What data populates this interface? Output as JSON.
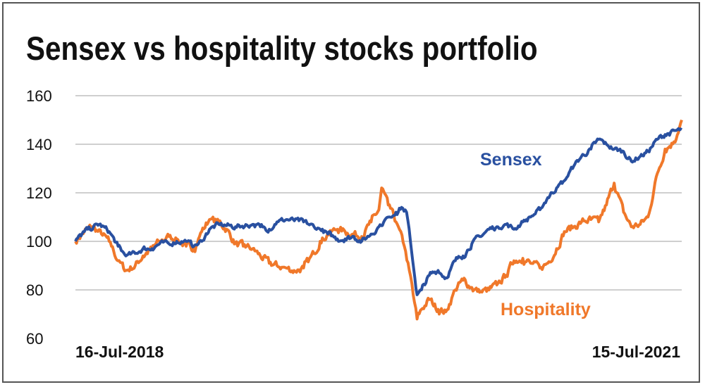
{
  "title": "Sensex vs hospitality stocks portfolio",
  "colors": {
    "sensex": "#2950a0",
    "hospitality": "#f0782a",
    "grid": "#bfbfbf"
  },
  "chart_data": {
    "type": "line",
    "title": "Sensex vs hospitality stocks portfolio",
    "xlabel": "",
    "ylabel": "",
    "ylim": [
      60,
      160
    ],
    "yticks": [
      60,
      80,
      100,
      120,
      140,
      160
    ],
    "x_range_labels": [
      "16-Jul-2018",
      "15-Jul-2021"
    ],
    "grid": true,
    "legend": "inline labels",
    "series": [
      {
        "name": "Sensex",
        "color": "#2950a0",
        "points": [
          [
            "2018-07-16",
            100
          ],
          [
            "2018-08-01",
            104
          ],
          [
            "2018-08-28",
            107
          ],
          [
            "2018-09-15",
            104
          ],
          [
            "2018-10-01",
            98
          ],
          [
            "2018-10-15",
            94
          ],
          [
            "2018-11-01",
            95
          ],
          [
            "2018-11-15",
            97
          ],
          [
            "2018-12-01",
            97
          ],
          [
            "2018-12-15",
            99
          ],
          [
            "2019-01-01",
            99
          ],
          [
            "2019-01-15",
            100
          ],
          [
            "2019-02-01",
            100
          ],
          [
            "2019-02-15",
            98
          ],
          [
            "2019-03-01",
            100
          ],
          [
            "2019-03-15",
            105
          ],
          [
            "2019-04-01",
            107
          ],
          [
            "2019-05-01",
            106
          ],
          [
            "2019-06-01",
            107
          ],
          [
            "2019-06-15",
            106
          ],
          [
            "2019-07-01",
            105
          ],
          [
            "2019-07-15",
            108
          ],
          [
            "2019-08-01",
            109
          ],
          [
            "2019-09-01",
            108
          ],
          [
            "2019-09-20",
            106
          ],
          [
            "2019-10-01",
            105
          ],
          [
            "2019-10-15",
            103
          ],
          [
            "2019-11-01",
            101
          ],
          [
            "2019-11-15",
            101
          ],
          [
            "2019-12-01",
            102
          ],
          [
            "2019-12-15",
            100
          ],
          [
            "2020-01-01",
            103
          ],
          [
            "2020-01-15",
            106
          ],
          [
            "2020-02-01",
            110
          ],
          [
            "2020-02-15",
            112
          ],
          [
            "2020-02-25",
            114
          ],
          [
            "2020-03-05",
            112
          ],
          [
            "2020-03-12",
            100
          ],
          [
            "2020-03-20",
            85
          ],
          [
            "2020-03-24",
            78
          ],
          [
            "2020-04-01",
            80
          ],
          [
            "2020-04-15",
            86
          ],
          [
            "2020-05-01",
            88
          ],
          [
            "2020-05-15",
            85
          ],
          [
            "2020-06-01",
            92
          ],
          [
            "2020-06-15",
            94
          ],
          [
            "2020-07-01",
            99
          ],
          [
            "2020-07-15",
            102
          ],
          [
            "2020-08-01",
            105
          ],
          [
            "2020-08-15",
            106
          ],
          [
            "2020-09-01",
            107
          ],
          [
            "2020-09-15",
            105
          ],
          [
            "2020-10-01",
            108
          ],
          [
            "2020-10-15",
            110
          ],
          [
            "2020-11-01",
            113
          ],
          [
            "2020-11-15",
            118
          ],
          [
            "2020-12-01",
            122
          ],
          [
            "2020-12-15",
            125
          ],
          [
            "2021-01-01",
            131
          ],
          [
            "2021-01-15",
            135
          ],
          [
            "2021-02-01",
            138
          ],
          [
            "2021-02-15",
            142
          ],
          [
            "2021-03-01",
            140
          ],
          [
            "2021-03-15",
            138
          ],
          [
            "2021-04-01",
            137
          ],
          [
            "2021-04-15",
            133
          ],
          [
            "2021-05-01",
            135
          ],
          [
            "2021-05-15",
            137
          ],
          [
            "2021-06-01",
            142
          ],
          [
            "2021-06-15",
            144
          ],
          [
            "2021-07-15",
            146
          ]
        ]
      },
      {
        "name": "Hospitality",
        "color": "#f0782a",
        "points": [
          [
            "2018-07-16",
            100
          ],
          [
            "2018-08-01",
            104
          ],
          [
            "2018-08-15",
            106
          ],
          [
            "2018-09-01",
            103
          ],
          [
            "2018-09-15",
            100
          ],
          [
            "2018-10-01",
            92
          ],
          [
            "2018-10-15",
            88
          ],
          [
            "2018-11-01",
            90
          ],
          [
            "2018-11-15",
            94
          ],
          [
            "2018-12-01",
            97
          ],
          [
            "2018-12-15",
            100
          ],
          [
            "2019-01-01",
            102
          ],
          [
            "2019-01-15",
            101
          ],
          [
            "2019-02-01",
            98
          ],
          [
            "2019-02-15",
            97
          ],
          [
            "2019-03-01",
            104
          ],
          [
            "2019-03-15",
            109
          ],
          [
            "2019-04-01",
            108
          ],
          [
            "2019-04-15",
            105
          ],
          [
            "2019-05-01",
            99
          ],
          [
            "2019-05-15",
            98
          ],
          [
            "2019-06-01",
            97
          ],
          [
            "2019-06-15",
            94
          ],
          [
            "2019-07-01",
            91
          ],
          [
            "2019-07-15",
            90
          ],
          [
            "2019-08-01",
            89
          ],
          [
            "2019-08-15",
            88
          ],
          [
            "2019-09-01",
            89
          ],
          [
            "2019-09-20",
            95
          ],
          [
            "2019-10-01",
            100
          ],
          [
            "2019-10-15",
            103
          ],
          [
            "2019-11-01",
            105
          ],
          [
            "2019-11-15",
            104
          ],
          [
            "2019-12-01",
            103
          ],
          [
            "2019-12-15",
            102
          ],
          [
            "2020-01-01",
            108
          ],
          [
            "2020-01-15",
            113
          ],
          [
            "2020-01-20",
            122
          ],
          [
            "2020-02-01",
            115
          ],
          [
            "2020-02-15",
            108
          ],
          [
            "2020-03-01",
            98
          ],
          [
            "2020-03-10",
            88
          ],
          [
            "2020-03-17",
            78
          ],
          [
            "2020-03-24",
            68
          ],
          [
            "2020-04-01",
            72
          ],
          [
            "2020-04-15",
            76
          ],
          [
            "2020-05-01",
            72
          ],
          [
            "2020-05-15",
            71
          ],
          [
            "2020-06-01",
            80
          ],
          [
            "2020-06-15",
            84
          ],
          [
            "2020-07-01",
            81
          ],
          [
            "2020-07-15",
            79
          ],
          [
            "2020-08-01",
            80
          ],
          [
            "2020-08-15",
            82
          ],
          [
            "2020-09-01",
            86
          ],
          [
            "2020-09-15",
            92
          ],
          [
            "2020-10-01",
            93
          ],
          [
            "2020-10-15",
            91
          ],
          [
            "2020-11-01",
            89
          ],
          [
            "2020-11-15",
            91
          ],
          [
            "2020-12-01",
            97
          ],
          [
            "2020-12-15",
            104
          ],
          [
            "2021-01-01",
            106
          ],
          [
            "2021-01-15",
            108
          ],
          [
            "2021-02-01",
            109
          ],
          [
            "2021-02-15",
            108
          ],
          [
            "2021-03-01",
            115
          ],
          [
            "2021-03-15",
            124
          ],
          [
            "2021-04-01",
            112
          ],
          [
            "2021-04-15",
            106
          ],
          [
            "2021-05-01",
            107
          ],
          [
            "2021-05-15",
            110
          ],
          [
            "2021-06-01",
            128
          ],
          [
            "2021-06-15",
            138
          ],
          [
            "2021-07-01",
            141
          ],
          [
            "2021-07-15",
            150
          ]
        ]
      }
    ]
  }
}
